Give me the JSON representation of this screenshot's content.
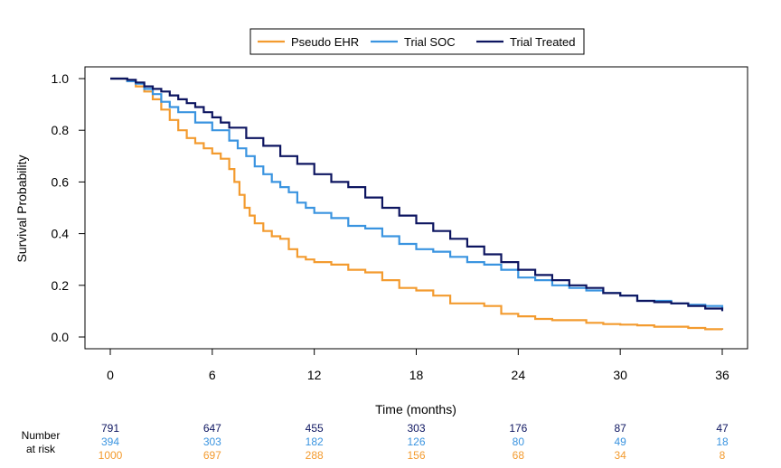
{
  "chart_data": {
    "type": "line",
    "subtype": "kaplan-meier step",
    "title": "",
    "xlabel": "Time (months)",
    "ylabel": "Survival Probability",
    "xlim": [
      0,
      36
    ],
    "ylim": [
      0,
      1
    ],
    "x_ticks": [
      0,
      6,
      12,
      18,
      24,
      30,
      36
    ],
    "y_ticks": [
      0.0,
      0.2,
      0.4,
      0.6,
      0.8,
      1.0
    ],
    "y_tick_labels": [
      "0.0",
      "0.2",
      "0.4",
      "0.6",
      "0.8",
      "1.0"
    ],
    "grid": false,
    "legend_position": "top",
    "series": [
      {
        "name": "Pseudo EHR",
        "color": "#F39B2F",
        "points": [
          [
            0,
            1.0
          ],
          [
            0.5,
            1.0
          ],
          [
            1,
            0.99
          ],
          [
            1.5,
            0.97
          ],
          [
            2,
            0.95
          ],
          [
            2.5,
            0.92
          ],
          [
            3,
            0.88
          ],
          [
            3.5,
            0.84
          ],
          [
            4,
            0.8
          ],
          [
            4.5,
            0.77
          ],
          [
            5,
            0.75
          ],
          [
            5.5,
            0.73
          ],
          [
            6,
            0.71
          ],
          [
            6.5,
            0.69
          ],
          [
            7,
            0.65
          ],
          [
            7.3,
            0.6
          ],
          [
            7.6,
            0.55
          ],
          [
            7.9,
            0.5
          ],
          [
            8.2,
            0.47
          ],
          [
            8.5,
            0.44
          ],
          [
            9,
            0.41
          ],
          [
            9.5,
            0.39
          ],
          [
            10,
            0.38
          ],
          [
            10.5,
            0.34
          ],
          [
            11,
            0.31
          ],
          [
            11.5,
            0.3
          ],
          [
            12,
            0.29
          ],
          [
            13,
            0.28
          ],
          [
            14,
            0.26
          ],
          [
            15,
            0.25
          ],
          [
            16,
            0.22
          ],
          [
            17,
            0.19
          ],
          [
            18,
            0.18
          ],
          [
            19,
            0.16
          ],
          [
            20,
            0.13
          ],
          [
            21,
            0.13
          ],
          [
            22,
            0.12
          ],
          [
            23,
            0.09
          ],
          [
            24,
            0.08
          ],
          [
            25,
            0.07
          ],
          [
            26,
            0.065
          ],
          [
            27,
            0.065
          ],
          [
            28,
            0.055
          ],
          [
            29,
            0.05
          ],
          [
            30,
            0.048
          ],
          [
            31,
            0.045
          ],
          [
            32,
            0.04
          ],
          [
            33,
            0.04
          ],
          [
            34,
            0.035
          ],
          [
            35,
            0.03
          ],
          [
            36,
            0.028
          ]
        ]
      },
      {
        "name": "Trial SOC",
        "color": "#3A94E0",
        "points": [
          [
            0,
            1.0
          ],
          [
            0.5,
            1.0
          ],
          [
            1,
            0.99
          ],
          [
            1.5,
            0.98
          ],
          [
            2,
            0.96
          ],
          [
            2.5,
            0.94
          ],
          [
            3,
            0.91
          ],
          [
            3.5,
            0.89
          ],
          [
            4,
            0.87
          ],
          [
            5,
            0.83
          ],
          [
            6,
            0.8
          ],
          [
            7,
            0.76
          ],
          [
            7.5,
            0.73
          ],
          [
            8,
            0.7
          ],
          [
            8.5,
            0.66
          ],
          [
            9,
            0.63
          ],
          [
            9.5,
            0.6
          ],
          [
            10,
            0.58
          ],
          [
            10.5,
            0.56
          ],
          [
            11,
            0.52
          ],
          [
            11.5,
            0.5
          ],
          [
            12,
            0.48
          ],
          [
            13,
            0.46
          ],
          [
            14,
            0.43
          ],
          [
            15,
            0.42
          ],
          [
            16,
            0.39
          ],
          [
            17,
            0.36
          ],
          [
            18,
            0.34
          ],
          [
            19,
            0.33
          ],
          [
            20,
            0.31
          ],
          [
            21,
            0.29
          ],
          [
            22,
            0.28
          ],
          [
            23,
            0.26
          ],
          [
            24,
            0.23
          ],
          [
            25,
            0.22
          ],
          [
            26,
            0.2
          ],
          [
            27,
            0.19
          ],
          [
            28,
            0.18
          ],
          [
            29,
            0.17
          ],
          [
            30,
            0.16
          ],
          [
            31,
            0.14
          ],
          [
            32,
            0.14
          ],
          [
            33,
            0.13
          ],
          [
            34,
            0.125
          ],
          [
            35,
            0.12
          ],
          [
            36,
            0.11
          ]
        ]
      },
      {
        "name": "Trial Treated",
        "color": "#0D1560",
        "points": [
          [
            0,
            1.0
          ],
          [
            0.5,
            1.0
          ],
          [
            1,
            0.995
          ],
          [
            1.5,
            0.985
          ],
          [
            2,
            0.97
          ],
          [
            2.5,
            0.96
          ],
          [
            3,
            0.95
          ],
          [
            3.5,
            0.935
          ],
          [
            4,
            0.92
          ],
          [
            4.5,
            0.905
          ],
          [
            5,
            0.89
          ],
          [
            5.5,
            0.87
          ],
          [
            6,
            0.85
          ],
          [
            6.5,
            0.83
          ],
          [
            7,
            0.81
          ],
          [
            8,
            0.77
          ],
          [
            9,
            0.74
          ],
          [
            10,
            0.7
          ],
          [
            11,
            0.67
          ],
          [
            12,
            0.63
          ],
          [
            13,
            0.6
          ],
          [
            14,
            0.58
          ],
          [
            15,
            0.54
          ],
          [
            16,
            0.5
          ],
          [
            17,
            0.47
          ],
          [
            18,
            0.44
          ],
          [
            19,
            0.41
          ],
          [
            20,
            0.38
          ],
          [
            21,
            0.35
          ],
          [
            22,
            0.32
          ],
          [
            23,
            0.29
          ],
          [
            24,
            0.26
          ],
          [
            25,
            0.24
          ],
          [
            26,
            0.22
          ],
          [
            27,
            0.2
          ],
          [
            28,
            0.19
          ],
          [
            29,
            0.17
          ],
          [
            30,
            0.16
          ],
          [
            31,
            0.14
          ],
          [
            32,
            0.135
          ],
          [
            33,
            0.13
          ],
          [
            34,
            0.12
          ],
          [
            35,
            0.11
          ],
          [
            36,
            0.1
          ]
        ]
      }
    ],
    "risk_table": {
      "label": [
        "Number",
        "at risk"
      ],
      "times": [
        0,
        6,
        12,
        18,
        24,
        30,
        36
      ],
      "rows": [
        {
          "name": "Trial Treated",
          "color": "#0D1560",
          "values": [
            791,
            647,
            455,
            303,
            176,
            87,
            47
          ]
        },
        {
          "name": "Trial SOC",
          "color": "#3A94E0",
          "values": [
            394,
            303,
            182,
            126,
            80,
            49,
            18
          ]
        },
        {
          "name": "Pseudo EHR",
          "color": "#F39B2F",
          "values": [
            1000,
            697,
            288,
            156,
            68,
            34,
            8
          ]
        }
      ]
    }
  }
}
